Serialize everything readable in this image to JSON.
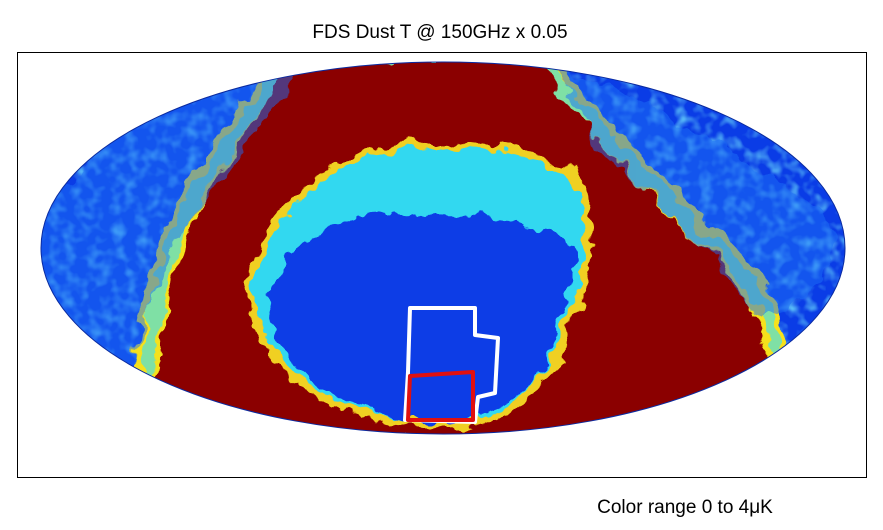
{
  "title": "FDS Dust T @ 150GHz x 0.05",
  "caption": "Color range 0 to 4μK"
}
